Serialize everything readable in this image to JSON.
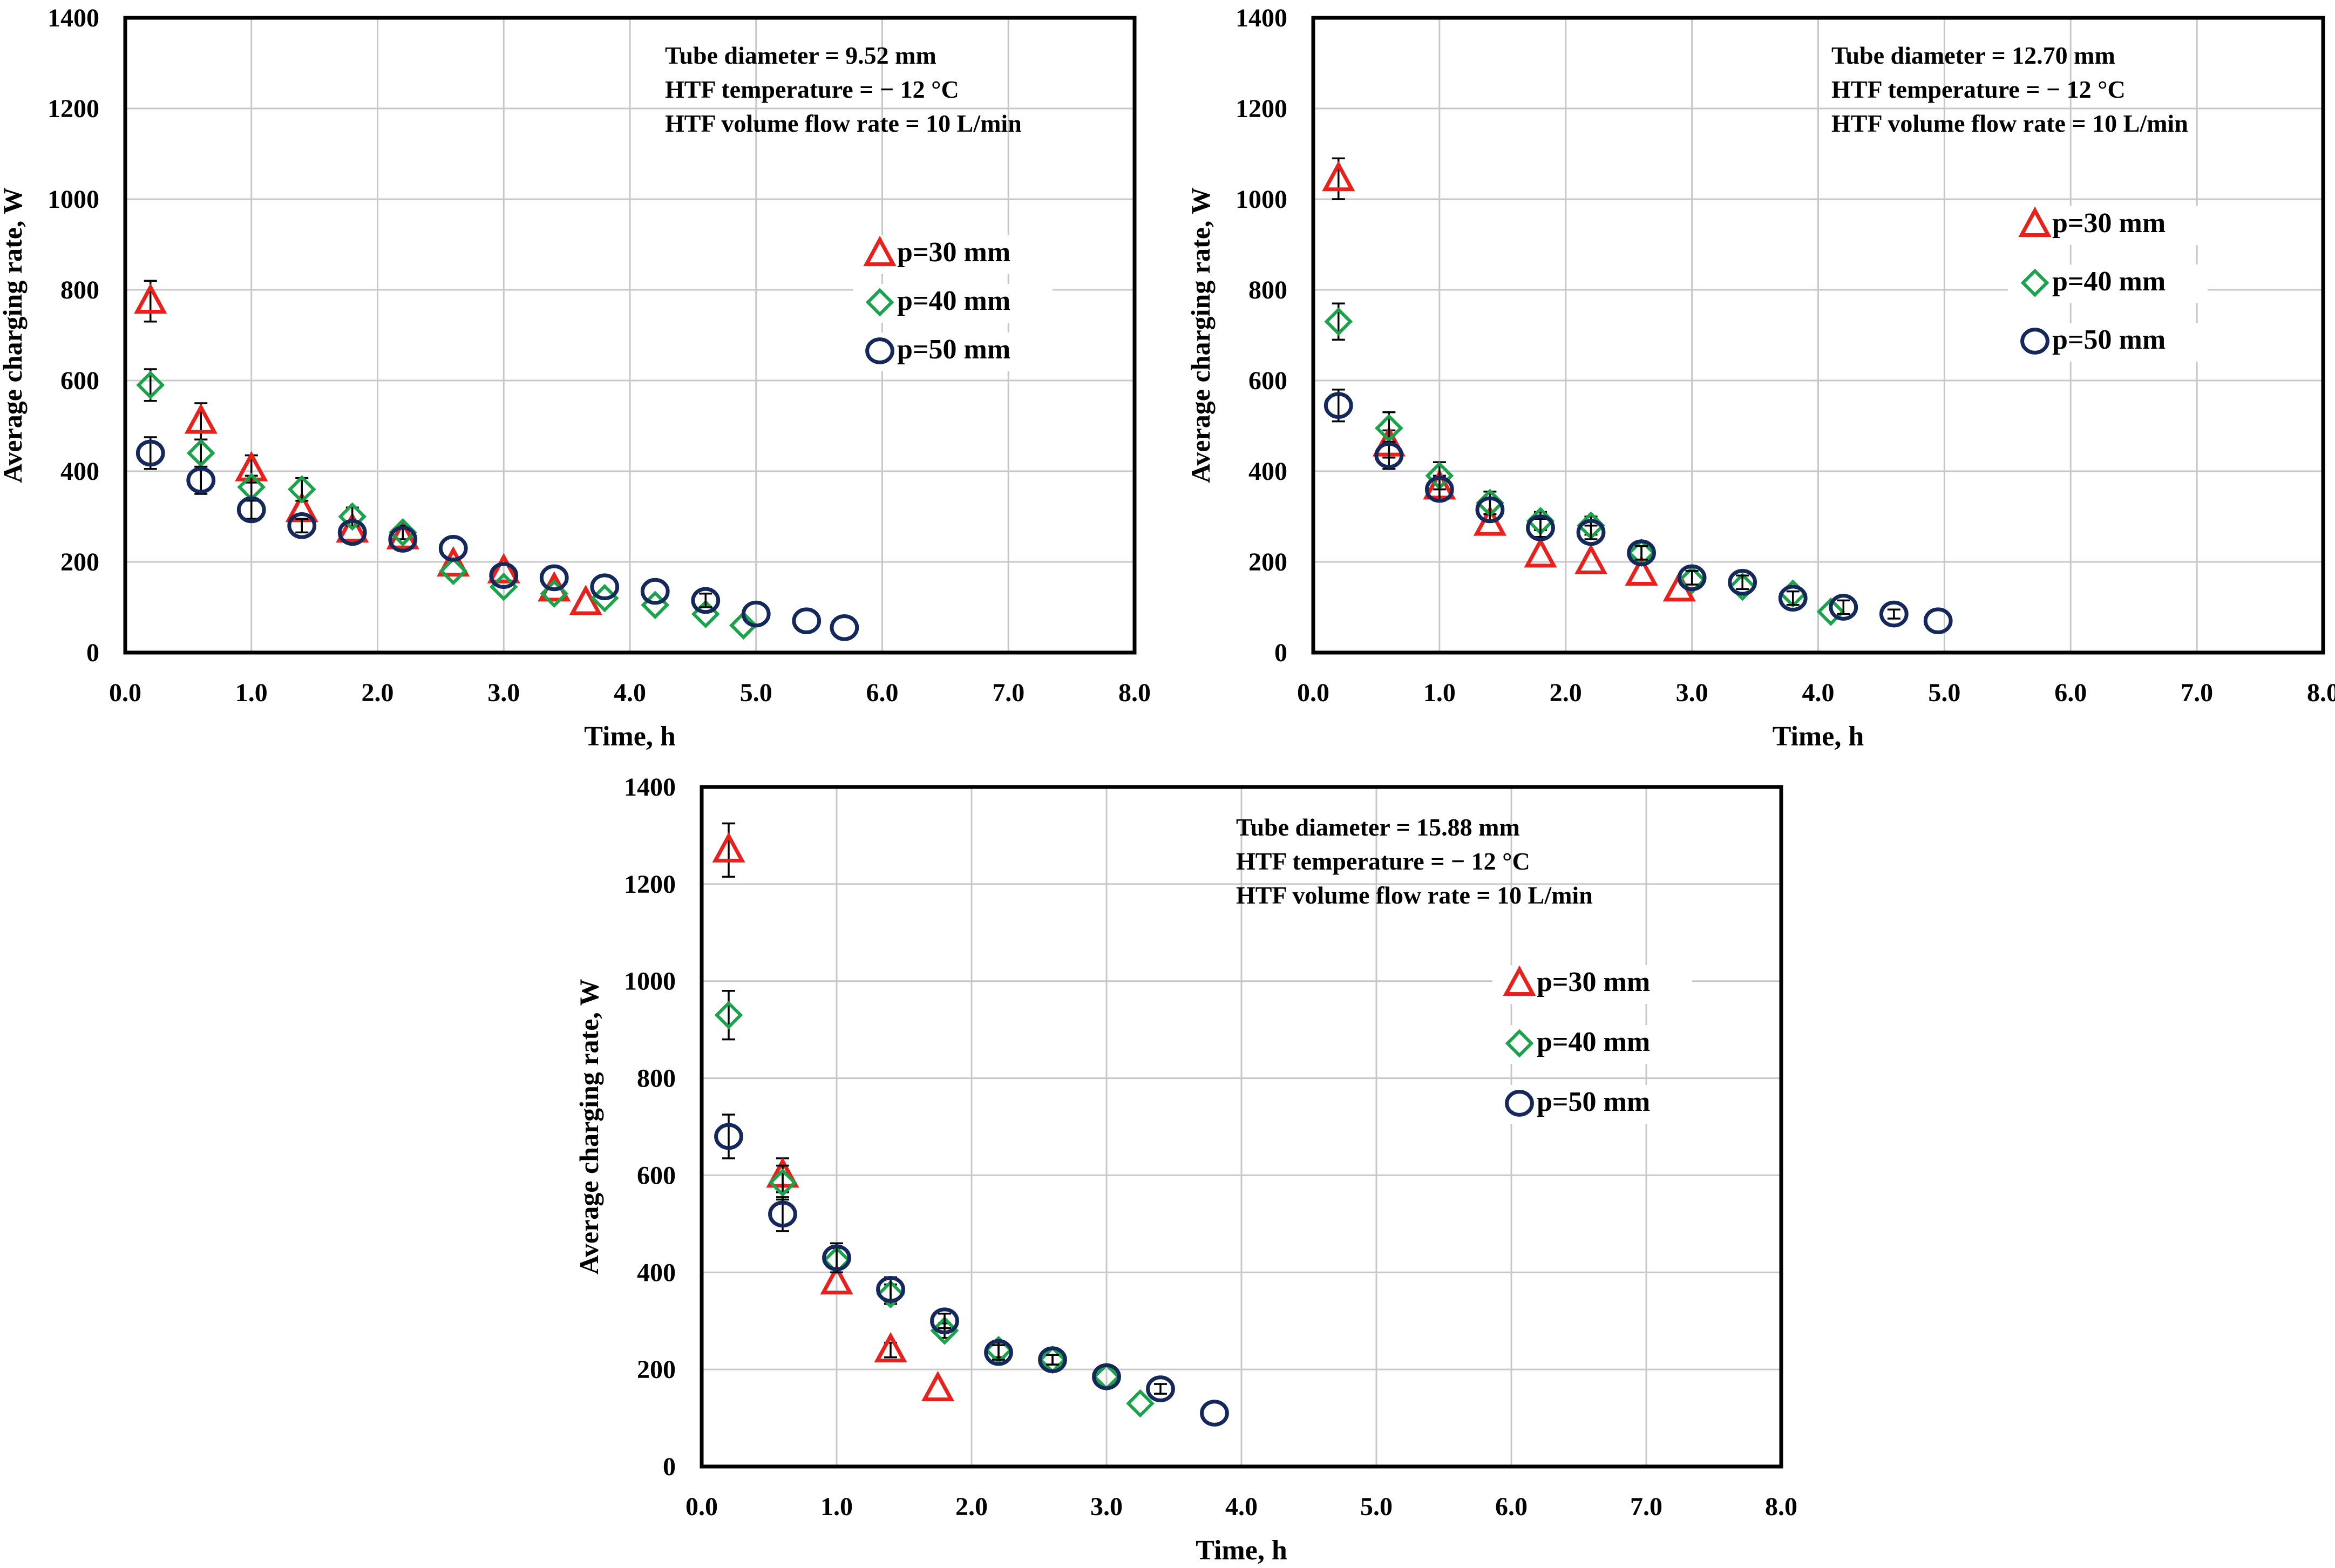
{
  "colors": {
    "p30": "#e8211c",
    "p40": "#1aa34a",
    "p50": "#14285c",
    "axis": "#000000",
    "grid": "#c8c8c8"
  },
  "chart_data": [
    {
      "type": "scatter",
      "title": "",
      "xlabel": "Time, h",
      "ylabel": "Average charging rate, W",
      "xlim": [
        0,
        8
      ],
      "ylim": [
        0,
        1400
      ],
      "xticks": [
        "0.0",
        "1.0",
        "2.0",
        "3.0",
        "4.0",
        "5.0",
        "6.0",
        "7.0",
        "8.0"
      ],
      "yticks": [
        "0",
        "200",
        "400",
        "600",
        "800",
        "1000",
        "1200",
        "1400"
      ],
      "grid": true,
      "annotation": [
        "Tube diameter = 9.52 mm",
        "HTF temperature = − 12 °C",
        "HTF volume flow rate = 10 L/min"
      ],
      "legend_position": "right",
      "series": [
        {
          "name": "p=30 mm",
          "marker": "triangle",
          "x": [
            0.2,
            0.6,
            1.0,
            1.4,
            1.8,
            2.2,
            2.6,
            3.0,
            3.4,
            3.65
          ],
          "y": [
            775,
            510,
            405,
            315,
            270,
            255,
            195,
            180,
            140,
            110
          ],
          "err": [
            45,
            40,
            30,
            0,
            0,
            0,
            0,
            0,
            0,
            0
          ]
        },
        {
          "name": "p=40 mm",
          "marker": "diamond",
          "x": [
            0.2,
            0.6,
            1.0,
            1.4,
            1.8,
            2.2,
            2.6,
            3.0,
            3.4,
            3.8,
            4.2,
            4.6,
            4.9
          ],
          "y": [
            590,
            440,
            365,
            360,
            300,
            265,
            180,
            145,
            130,
            120,
            105,
            85,
            60
          ],
          "err": [
            35,
            30,
            25,
            25,
            20,
            15,
            0,
            0,
            0,
            0,
            0,
            0,
            0
          ]
        },
        {
          "name": "p=50 mm",
          "marker": "circle",
          "x": [
            0.2,
            0.6,
            1.0,
            1.4,
            1.8,
            2.2,
            2.6,
            3.0,
            3.4,
            3.8,
            4.2,
            4.6,
            5.0,
            5.4,
            5.7
          ],
          "y": [
            440,
            380,
            315,
            280,
            265,
            250,
            230,
            170,
            165,
            145,
            135,
            115,
            85,
            70,
            55
          ],
          "err": [
            35,
            30,
            20,
            15,
            0,
            0,
            0,
            0,
            0,
            0,
            0,
            15,
            0,
            0,
            0
          ]
        }
      ]
    },
    {
      "type": "scatter",
      "title": "",
      "xlabel": "Time, h",
      "ylabel": "Average charging rate, W",
      "xlim": [
        0,
        8
      ],
      "ylim": [
        0,
        1400
      ],
      "xticks": [
        "0.0",
        "1.0",
        "2.0",
        "3.0",
        "4.0",
        "5.0",
        "6.0",
        "7.0",
        "8.0"
      ],
      "yticks": [
        "0",
        "200",
        "400",
        "600",
        "800",
        "1000",
        "1200",
        "1400"
      ],
      "grid": true,
      "annotation": [
        "Tube diameter = 12.70 mm",
        "HTF temperature = − 12 °C",
        "HTF volume flow rate = 10 L/min"
      ],
      "legend_position": "right",
      "series": [
        {
          "name": "p=30 mm",
          "marker": "triangle",
          "x": [
            0.2,
            0.6,
            1.0,
            1.4,
            1.8,
            2.2,
            2.6,
            2.9
          ],
          "y": [
            1045,
            460,
            365,
            285,
            215,
            200,
            175,
            140
          ],
          "err": [
            45,
            30,
            25,
            0,
            0,
            0,
            0,
            0
          ]
        },
        {
          "name": "p=40 mm",
          "marker": "diamond",
          "x": [
            0.2,
            0.6,
            1.0,
            1.4,
            1.8,
            2.2,
            2.6,
            3.0,
            3.4,
            3.8,
            4.1
          ],
          "y": [
            730,
            495,
            390,
            330,
            290,
            280,
            220,
            160,
            145,
            130,
            90
          ],
          "err": [
            40,
            35,
            30,
            25,
            20,
            20,
            15,
            0,
            0,
            0,
            0
          ]
        },
        {
          "name": "p=50 mm",
          "marker": "circle",
          "x": [
            0.2,
            0.6,
            1.0,
            1.4,
            1.8,
            2.2,
            2.6,
            3.0,
            3.4,
            3.8,
            4.2,
            4.6,
            4.95
          ],
          "y": [
            545,
            435,
            360,
            315,
            275,
            265,
            220,
            165,
            155,
            120,
            100,
            85,
            70
          ],
          "err": [
            35,
            30,
            25,
            25,
            20,
            15,
            15,
            15,
            15,
            15,
            15,
            10,
            0
          ]
        }
      ]
    },
    {
      "type": "scatter",
      "title": "",
      "xlabel": "Time, h",
      "ylabel": "Average charging rate, W",
      "xlim": [
        0,
        8
      ],
      "ylim": [
        0,
        1400
      ],
      "xticks": [
        "0.0",
        "1.0",
        "2.0",
        "3.0",
        "4.0",
        "5.0",
        "6.0",
        "7.0",
        "8.0"
      ],
      "yticks": [
        "0",
        "200",
        "400",
        "600",
        "800",
        "1000",
        "1200",
        "1400"
      ],
      "grid": true,
      "annotation": [
        "Tube diameter = 15.88 mm",
        "HTF temperature = − 12 °C",
        "HTF volume flow rate = 10 L/min"
      ],
      "legend_position": "right",
      "series": [
        {
          "name": "p=30 mm",
          "marker": "triangle",
          "x": [
            0.2,
            0.6,
            1.0,
            1.4,
            1.75
          ],
          "y": [
            1270,
            600,
            380,
            240,
            160
          ],
          "err": [
            55,
            35,
            0,
            15,
            0
          ]
        },
        {
          "name": "p=40 mm",
          "marker": "diamond",
          "x": [
            0.2,
            0.6,
            1.0,
            1.4,
            1.8,
            2.2,
            2.6,
            3.0,
            3.25
          ],
          "y": [
            930,
            585,
            425,
            355,
            280,
            240,
            220,
            185,
            130
          ],
          "err": [
            50,
            35,
            25,
            20,
            15,
            15,
            10,
            0,
            0
          ]
        },
        {
          "name": "p=50 mm",
          "marker": "circle",
          "x": [
            0.2,
            0.6,
            1.0,
            1.4,
            1.8,
            2.2,
            2.6,
            3.0,
            3.4,
            3.8
          ],
          "y": [
            680,
            520,
            430,
            365,
            300,
            235,
            220,
            185,
            160,
            110
          ],
          "err": [
            45,
            35,
            30,
            25,
            15,
            15,
            10,
            0,
            10,
            0
          ]
        }
      ]
    }
  ]
}
